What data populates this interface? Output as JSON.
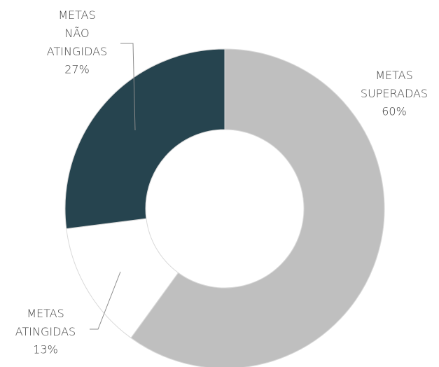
{
  "chart_data": {
    "type": "donut",
    "categories": [
      "METAS SUPERADAS",
      "METAS ATINGIDAS",
      "METAS NÃO ATINGIDAS"
    ],
    "values": [
      60,
      13,
      27
    ],
    "value_labels": [
      "60%",
      "13%",
      "27%"
    ],
    "colors": [
      "#bfbfbf",
      "#ffffff",
      "#26444f"
    ]
  }
}
